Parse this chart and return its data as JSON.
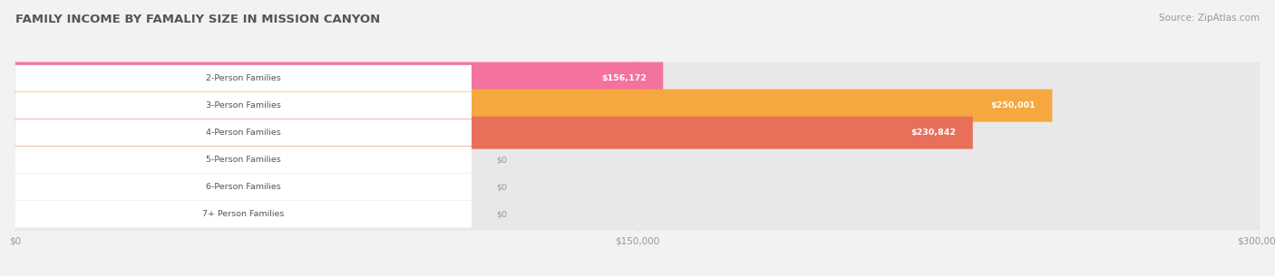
{
  "title": "FAMILY INCOME BY FAMALIY SIZE IN MISSION CANYON",
  "source": "Source: ZipAtlas.com",
  "categories": [
    "2-Person Families",
    "3-Person Families",
    "4-Person Families",
    "5-Person Families",
    "6-Person Families",
    "7+ Person Families"
  ],
  "values": [
    156172,
    250001,
    230842,
    0,
    0,
    0
  ],
  "max_value": 300000,
  "bar_colors": [
    "#f472a0",
    "#f5a840",
    "#e8705a",
    "#a0b4d8",
    "#c4a0d0",
    "#70c8c0"
  ],
  "value_labels": [
    "$156,172",
    "$250,001",
    "$230,842",
    "$0",
    "$0",
    "$0"
  ],
  "xtick_labels": [
    "$0",
    "$150,000",
    "$300,000"
  ],
  "xtick_values": [
    0,
    150000,
    300000
  ],
  "background_color": "#f2f2f2",
  "bar_bg_color": "#e8e8e8",
  "title_color": "#555555",
  "source_color": "#999999",
  "label_text_color": "#555555",
  "value_inside_color": "#ffffff",
  "value_outside_color": "#999999"
}
